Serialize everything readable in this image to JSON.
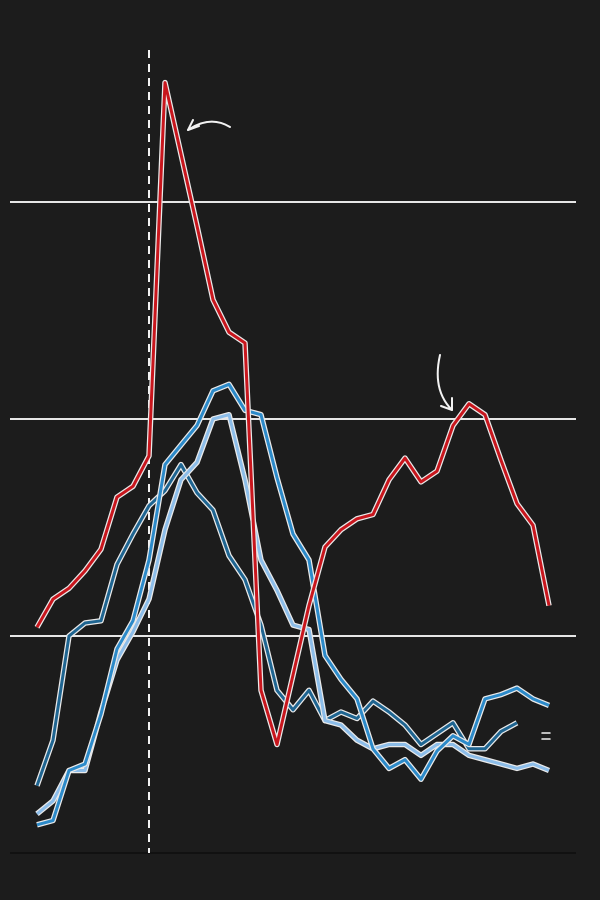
{
  "chart_data": {
    "type": "line",
    "x": [
      0,
      2,
      4,
      6,
      8,
      10,
      12,
      14,
      16,
      18,
      20,
      22,
      24,
      26,
      28,
      30,
      32,
      34,
      36,
      38,
      40,
      42,
      44,
      46,
      48,
      50,
      52,
      54,
      56,
      58,
      60,
      62,
      64
    ],
    "xlim": [
      0,
      64
    ],
    "ylim": [
      0,
      3.75
    ],
    "yticks": [
      0,
      1,
      2,
      3
    ],
    "grid": true,
    "vline": 14,
    "series": [
      {
        "color": "#1f6591",
        "values": [
          0.31,
          0.52,
          1.0,
          1.06,
          1.07,
          1.33,
          1.47,
          1.6,
          1.67,
          1.79,
          1.66,
          1.58,
          1.37,
          1.26,
          1.05,
          0.75,
          0.66,
          0.75,
          0.61,
          0.65,
          0.62,
          0.7,
          0.65,
          0.59,
          0.5,
          0.55,
          0.6,
          0.48,
          0.48,
          0.56,
          0.6,
          null,
          null
        ]
      },
      {
        "color": "#8cbde9",
        "values": [
          0.18,
          0.24,
          0.38,
          0.38,
          0.65,
          0.89,
          1.02,
          1.17,
          1.49,
          1.72,
          1.8,
          2.0,
          2.02,
          1.72,
          1.35,
          1.21,
          1.05,
          1.03,
          0.61,
          0.59,
          0.52,
          0.48,
          0.5,
          0.5,
          0.45,
          0.5,
          0.5,
          0.45,
          0.43,
          0.41,
          0.39,
          0.41,
          0.38
        ]
      },
      {
        "color": "#2c8ac9",
        "values": [
          0.13,
          0.15,
          0.38,
          0.41,
          0.64,
          0.94,
          1.07,
          1.35,
          1.79,
          1.88,
          1.97,
          2.13,
          2.16,
          2.04,
          2.02,
          1.73,
          1.47,
          1.35,
          0.91,
          0.8,
          0.71,
          0.48,
          0.39,
          0.43,
          0.34,
          0.47,
          0.54,
          0.5,
          0.71,
          0.73,
          0.76,
          0.71,
          0.68
        ]
      },
      {
        "color": "#c8161d",
        "values": [
          1.04,
          1.17,
          1.22,
          1.3,
          1.4,
          1.64,
          1.69,
          1.83,
          3.55,
          3.22,
          2.89,
          2.55,
          2.4,
          2.35,
          0.75,
          0.5,
          0.82,
          1.14,
          1.41,
          1.49,
          1.54,
          1.56,
          1.72,
          1.82,
          1.71,
          1.76,
          1.97,
          2.07,
          2.02,
          1.81,
          1.61,
          1.51,
          1.14
        ]
      }
    ]
  }
}
